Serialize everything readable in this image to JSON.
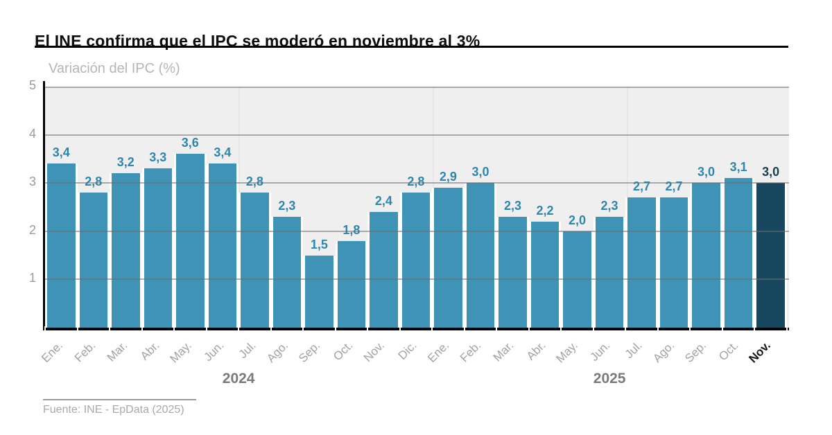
{
  "header": {
    "title": "El INE confirma que el IPC se moderó en noviembre al 3%",
    "subtitle": "Variación del IPC (%)"
  },
  "footer": {
    "source": "Fuente: INE - EpData (2025)"
  },
  "chart_data": {
    "type": "bar",
    "title": "Variación del IPC (%)",
    "xlabel": "",
    "ylabel": "Variación del IPC (%)",
    "ylim": [
      0,
      5
    ],
    "yticks": [
      5,
      4,
      3,
      2,
      1
    ],
    "grid": true,
    "legend": false,
    "categories": [
      "Ene.",
      "Feb.",
      "Mar.",
      "Abr.",
      "May.",
      "Jun.",
      "Jul.",
      "Ago.",
      "Sep.",
      "Oct.",
      "Nov.",
      "Dic.",
      "Ene.",
      "Feb.",
      "Mar.",
      "Abr.",
      "May.",
      "Jun.",
      "Jul.",
      "Ago.",
      "Sep.",
      "Oct.",
      "Nov."
    ],
    "values": [
      3.4,
      2.8,
      3.2,
      3.3,
      3.6,
      3.4,
      2.8,
      2.3,
      1.5,
      1.8,
      2.4,
      2.8,
      2.9,
      3.0,
      2.3,
      2.2,
      2.0,
      2.3,
      2.7,
      2.7,
      3.0,
      3.1,
      3.0
    ],
    "value_labels": [
      "3,4",
      "2,8",
      "3,2",
      "3,3",
      "3,6",
      "3,4",
      "2,8",
      "2,3",
      "1,5",
      "1,8",
      "2,4",
      "2,8",
      "2,9",
      "3,0",
      "2,3",
      "2,2",
      "2,0",
      "2,3",
      "2,7",
      "2,7",
      "3,0",
      "3,1",
      "3,0"
    ],
    "year_groups": [
      {
        "label": "2024",
        "count": 12
      },
      {
        "label": "2025",
        "count": 11
      }
    ],
    "half_year_separators": [
      6,
      12,
      18
    ],
    "highlight_index": 22,
    "colors": {
      "bar": "#3e93b7",
      "highlight_bar": "#16475f",
      "value_label": "#2f86ac",
      "highlight_value_label": "#143f55",
      "plot_background": "#f0efef",
      "gridline": "#6e6e6e",
      "axis": "#000000",
      "tick_label": "#9b9b9b",
      "month_label": "#a2a2a2",
      "highlight_month_label": "#161616",
      "year_label": "#7a7a7a"
    }
  }
}
